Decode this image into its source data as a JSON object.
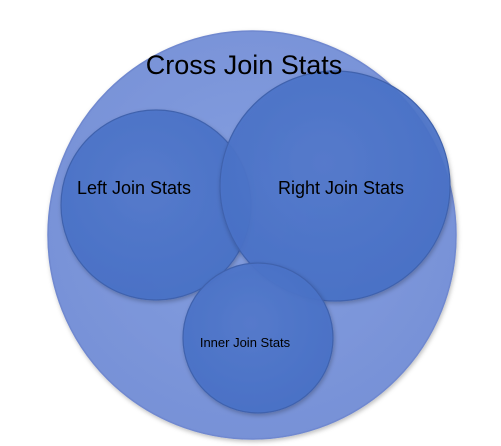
{
  "diagram": {
    "outer_label": "Cross Join Stats",
    "left_label": "Left Join Stats",
    "right_label": "Right Join Stats",
    "inner_label": "Inner Join Stats"
  },
  "colors": {
    "outer_fill": "#7f98dc",
    "inner_fill": "#4a73c8",
    "edge": "#3f62ad",
    "text": "#000000"
  }
}
